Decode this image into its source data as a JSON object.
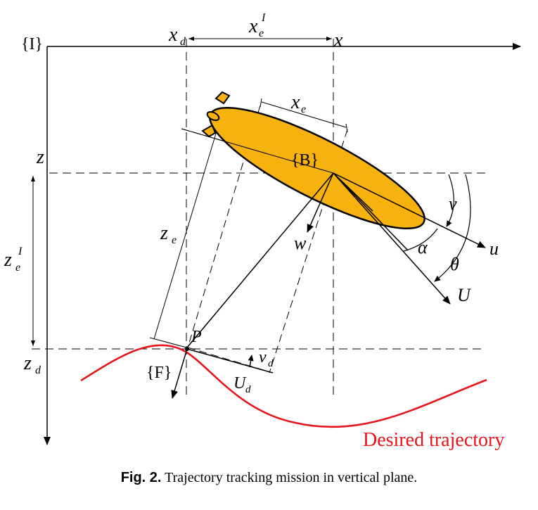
{
  "frames": {
    "inertial": "{I}",
    "body": "{B}",
    "serret": "{F}"
  },
  "axes": {
    "x": "x",
    "xd": "x",
    "xd_sub": "d",
    "z": "z",
    "zd": "z",
    "zd_sub": "d"
  },
  "errors": {
    "xeI": "x",
    "xeI_sub": "e",
    "xeI_sup": "I",
    "xe": "x",
    "xe_sub": "e",
    "ze": "z",
    "ze_sub": "e",
    "zeI": "z",
    "zeI_sub": "e",
    "zeI_sup": "I"
  },
  "velocities": {
    "u": "u",
    "w": "w",
    "v": "v",
    "U": "U",
    "alpha": "α",
    "theta": "θ",
    "vd": "v",
    "vd_sub": "d",
    "Ud": "U",
    "Ud_sub": "d"
  },
  "point": "P",
  "trajectory_label": "Desired trajectory",
  "colors": {
    "vehicle_fill": "#F6B20E",
    "trajectory": "#E8141B"
  },
  "caption": {
    "label": "Fig. 2.",
    "text": "Trajectory tracking mission in vertical plane."
  }
}
